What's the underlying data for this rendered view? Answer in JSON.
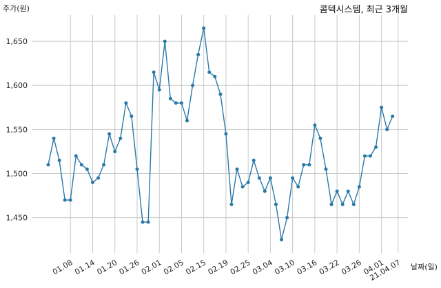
{
  "chart_data": {
    "type": "line",
    "title": "콤텍시스템, 최근 3개월",
    "ylabel": "주가(원)",
    "xlabel": "날짜(일)",
    "ylim": [
      1410,
      1675
    ],
    "yticks": [
      1450,
      1500,
      1550,
      1600,
      1650
    ],
    "ytick_labels": [
      "1,450",
      "1,500",
      "1,550",
      "1,600",
      "1,650"
    ],
    "grid": true,
    "color": "#2878a8",
    "x_tick_labels": [
      "01.08",
      "01.14",
      "01.20",
      "01.26",
      "02.01",
      "02.05",
      "02.15",
      "02.19",
      "02.25",
      "03.04",
      "03.10",
      "03.16",
      "03.22",
      "03.26",
      "04.01",
      "21.04.07"
    ],
    "x_tick_index": [
      4,
      8,
      12,
      16,
      20,
      24,
      28,
      32,
      36,
      40,
      44,
      48,
      52,
      56,
      60,
      63
    ],
    "series": [
      {
        "values": [
          1510,
          1540,
          1515,
          1470,
          1470,
          1520,
          1510,
          1505,
          1490,
          1495,
          1510,
          1545,
          1525,
          1540,
          1580,
          1565,
          1505,
          1445,
          1445,
          1615,
          1595,
          1650,
          1585,
          1580,
          1580,
          1560,
          1600,
          1635,
          1665,
          1615,
          1610,
          1590,
          1545,
          1465,
          1505,
          1485,
          1490,
          1515,
          1495,
          1480,
          1495,
          1465,
          1425,
          1450,
          1495,
          1485,
          1510,
          1510,
          1555,
          1540,
          1505,
          1465,
          1480,
          1465,
          1480,
          1465,
          1485,
          1520,
          1520,
          1530,
          1575,
          1550,
          1565
        ]
      }
    ]
  }
}
